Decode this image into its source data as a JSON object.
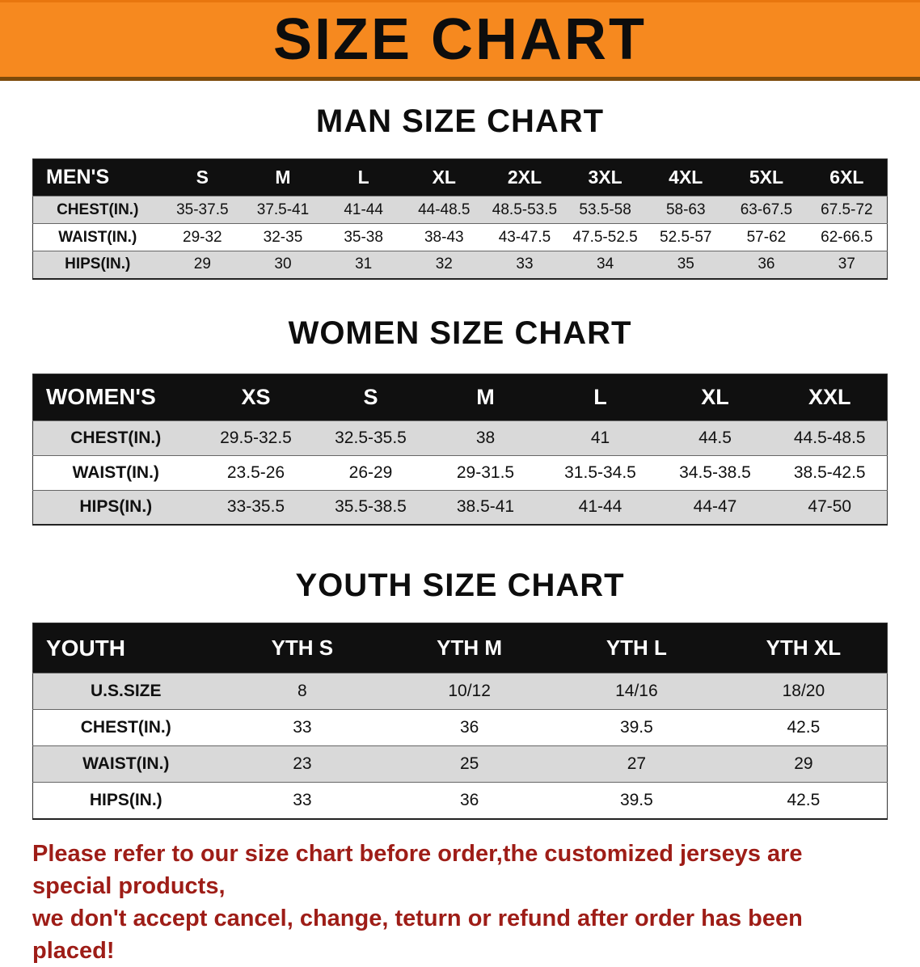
{
  "banner": {
    "title": "SIZE CHART"
  },
  "colors": {
    "banner_bg": "#F6891F",
    "header_bg": "#101010",
    "row_alt": "#D9D9D9",
    "notice_color": "#9E1D17"
  },
  "tables": [
    {
      "heading": "MAN SIZE CHART",
      "header_label": "MEN'S",
      "columns": [
        "S",
        "M",
        "L",
        "XL",
        "2XL",
        "3XL",
        "4XL",
        "5XL",
        "6XL"
      ],
      "rows": [
        {
          "label": "CHEST(IN.)",
          "values": [
            "35-37.5",
            "37.5-41",
            "41-44",
            "44-48.5",
            "48.5-53.5",
            "53.5-58",
            "58-63",
            "63-67.5",
            "67.5-72"
          ]
        },
        {
          "label": "WAIST(IN.)",
          "values": [
            "29-32",
            "32-35",
            "35-38",
            "38-43",
            "43-47.5",
            "47.5-52.5",
            "52.5-57",
            "57-62",
            "62-66.5"
          ]
        },
        {
          "label": "HIPS(IN.)",
          "values": [
            "29",
            "30",
            "31",
            "32",
            "33",
            "34",
            "35",
            "36",
            "37"
          ]
        }
      ]
    },
    {
      "heading": "WOMEN SIZE CHART",
      "header_label": "WOMEN'S",
      "columns": [
        "XS",
        "S",
        "M",
        "L",
        "XL",
        "XXL"
      ],
      "rows": [
        {
          "label": "CHEST(IN.)",
          "values": [
            "29.5-32.5",
            "32.5-35.5",
            "38",
            "41",
            "44.5",
            "44.5-48.5"
          ]
        },
        {
          "label": "WAIST(IN.)",
          "values": [
            "23.5-26",
            "26-29",
            "29-31.5",
            "31.5-34.5",
            "34.5-38.5",
            "38.5-42.5"
          ]
        },
        {
          "label": "HIPS(IN.)",
          "values": [
            "33-35.5",
            "35.5-38.5",
            "38.5-41",
            "41-44",
            "44-47",
            "47-50"
          ]
        }
      ]
    },
    {
      "heading": "YOUTH SIZE CHART",
      "header_label": "YOUTH",
      "columns": [
        "YTH S",
        "YTH M",
        "YTH L",
        "YTH XL"
      ],
      "rows": [
        {
          "label": "U.S.SIZE",
          "values": [
            "8",
            "10/12",
            "14/16",
            "18/20"
          ]
        },
        {
          "label": "CHEST(IN.)",
          "values": [
            "33",
            "36",
            "39.5",
            "42.5"
          ]
        },
        {
          "label": "WAIST(IN.)",
          "values": [
            "23",
            "25",
            "27",
            "29"
          ]
        },
        {
          "label": "HIPS(IN.)",
          "values": [
            "33",
            "36",
            "39.5",
            "42.5"
          ]
        }
      ]
    }
  ],
  "footer": {
    "line1": "Please refer to our size chart before order,the customized jerseys are special products,",
    "line2": "we don't accept cancel, change, teturn or refund after order has been placed!"
  }
}
